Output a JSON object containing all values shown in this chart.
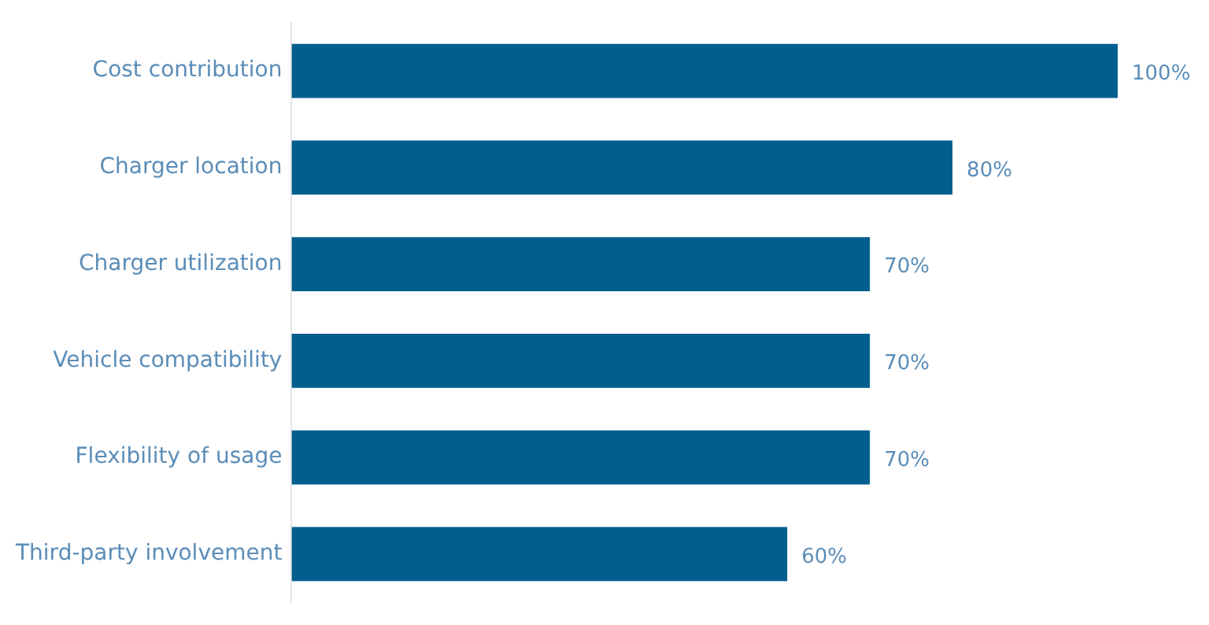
{
  "chart_data": {
    "type": "bar",
    "orientation": "horizontal",
    "categories": [
      "Cost contribution",
      "Charger location",
      "Charger utilization",
      "Vehicle compatibility",
      "Flexibility of usage",
      "Third-party involvement"
    ],
    "values": [
      100,
      80,
      70,
      70,
      70,
      60
    ],
    "color": "#005f8f",
    "value_labels": [
      "100%",
      "80%",
      "70%",
      "70%",
      "70%",
      "60%"
    ]
  }
}
